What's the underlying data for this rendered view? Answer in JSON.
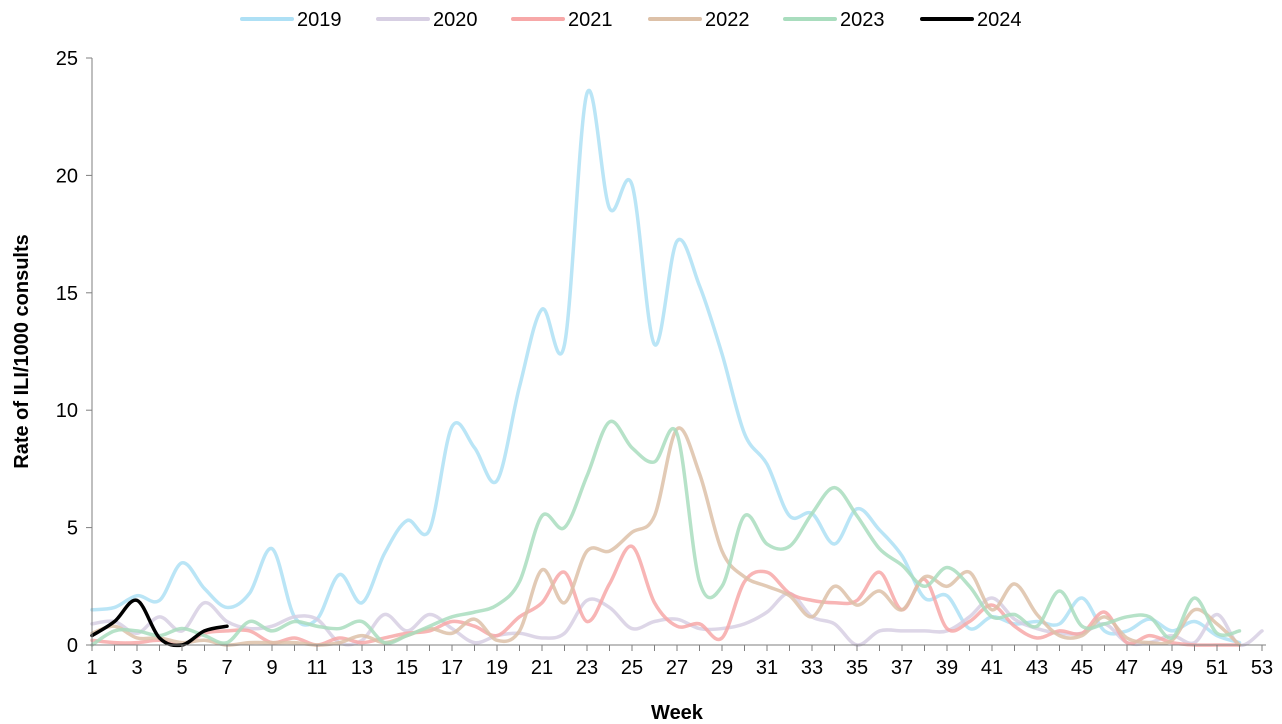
{
  "chart_data": {
    "type": "line",
    "title": "",
    "xlabel": "Week",
    "ylabel": "Rate of ILI/1000 consults",
    "xlim": [
      1,
      53
    ],
    "ylim": [
      0,
      25
    ],
    "x_ticks": [
      1,
      3,
      5,
      7,
      9,
      11,
      13,
      15,
      17,
      19,
      21,
      23,
      25,
      27,
      29,
      31,
      33,
      35,
      37,
      39,
      41,
      43,
      45,
      47,
      49,
      51,
      53
    ],
    "y_ticks": [
      0,
      5,
      10,
      15,
      20,
      25
    ],
    "grid": false,
    "legend_position": "top-center",
    "series": [
      {
        "name": "2019",
        "color": "#AEE0F5",
        "emphasized": false,
        "x": [
          1,
          2,
          3,
          4,
          5,
          6,
          7,
          8,
          9,
          10,
          11,
          12,
          13,
          14,
          15,
          16,
          17,
          18,
          19,
          20,
          21,
          22,
          23,
          24,
          25,
          26,
          27,
          28,
          29,
          30,
          31,
          32,
          33,
          34,
          35,
          36,
          37,
          38,
          39,
          40,
          41,
          42,
          43,
          44,
          45,
          46,
          47,
          48,
          49,
          50,
          51,
          52
        ],
        "y": [
          1.5,
          1.6,
          2.1,
          1.9,
          3.5,
          2.4,
          1.6,
          2.2,
          4.1,
          1.2,
          1.1,
          3.0,
          1.8,
          3.9,
          5.3,
          4.9,
          9.3,
          8.4,
          7.0,
          11.0,
          14.3,
          12.8,
          23.5,
          18.6,
          19.6,
          12.8,
          17.2,
          15.3,
          12.4,
          9.0,
          7.7,
          5.5,
          5.6,
          4.3,
          5.8,
          4.9,
          3.8,
          2.0,
          2.1,
          0.7,
          1.2,
          0.9,
          1.0,
          0.9,
          2.0,
          0.6,
          0.6,
          1.1,
          0.6,
          1.0,
          0.4,
          0.1
        ]
      },
      {
        "name": "2020",
        "color": "#D7CFE3",
        "emphasized": false,
        "x": [
          1,
          2,
          3,
          4,
          5,
          6,
          7,
          8,
          9,
          10,
          11,
          12,
          13,
          14,
          15,
          16,
          17,
          18,
          19,
          20,
          21,
          22,
          23,
          24,
          25,
          26,
          27,
          28,
          29,
          30,
          31,
          32,
          33,
          34,
          35,
          36,
          37,
          38,
          39,
          40,
          41,
          42,
          43,
          44,
          45,
          46,
          47,
          48,
          49,
          50,
          51,
          52,
          53
        ],
        "y": [
          0.9,
          1.0,
          0.5,
          1.2,
          0.6,
          1.8,
          1.0,
          0.7,
          0.8,
          1.2,
          1.1,
          0.1,
          0.2,
          1.3,
          0.6,
          1.3,
          0.7,
          0.1,
          0.4,
          0.5,
          0.3,
          0.5,
          1.9,
          1.6,
          0.7,
          1.0,
          1.1,
          0.7,
          0.7,
          0.9,
          1.4,
          2.2,
          1.2,
          0.9,
          0.0,
          0.6,
          0.6,
          0.6,
          0.6,
          1.2,
          2.0,
          1.1,
          0.7,
          0.5,
          0.5,
          0.9,
          0.1,
          0.1,
          0.4,
          0.1,
          1.3,
          0.0,
          0.6
        ]
      },
      {
        "name": "2021",
        "color": "#F7A8A8",
        "emphasized": false,
        "x": [
          1,
          2,
          3,
          4,
          5,
          6,
          7,
          8,
          9,
          10,
          11,
          12,
          13,
          14,
          15,
          16,
          17,
          18,
          19,
          20,
          21,
          22,
          23,
          24,
          25,
          26,
          27,
          28,
          29,
          30,
          31,
          32,
          33,
          34,
          35,
          36,
          37,
          38,
          39,
          40,
          41,
          42,
          43,
          44,
          45,
          46,
          47,
          48,
          49,
          50,
          51,
          52
        ],
        "y": [
          0.2,
          0.1,
          0.1,
          0.2,
          0.0,
          0.5,
          0.6,
          0.6,
          0.1,
          0.3,
          0.0,
          0.3,
          0.1,
          0.3,
          0.5,
          0.6,
          1.0,
          0.8,
          0.4,
          1.2,
          1.8,
          3.1,
          1.0,
          2.6,
          4.2,
          1.8,
          0.8,
          0.9,
          0.3,
          2.7,
          3.1,
          2.2,
          1.9,
          1.8,
          1.9,
          3.1,
          1.5,
          2.8,
          0.7,
          1.0,
          1.7,
          0.8,
          0.3,
          0.6,
          0.5,
          1.4,
          0.1,
          0.4,
          0.1,
          0.0,
          0.0,
          0.0
        ]
      },
      {
        "name": "2022",
        "color": "#DDC1A8",
        "emphasized": false,
        "x": [
          1,
          2,
          3,
          4,
          5,
          6,
          7,
          8,
          9,
          10,
          11,
          12,
          13,
          14,
          15,
          16,
          17,
          18,
          19,
          20,
          21,
          22,
          23,
          24,
          25,
          26,
          27,
          28,
          29,
          30,
          31,
          32,
          33,
          34,
          35,
          36,
          37,
          38,
          39,
          40,
          41,
          42,
          43,
          44,
          45,
          46,
          47,
          48,
          49,
          50,
          51,
          52
        ],
        "y": [
          0.5,
          0.8,
          0.3,
          0.3,
          0.1,
          0.2,
          0.0,
          0.1,
          0.1,
          0.1,
          0.0,
          0.1,
          0.4,
          0.1,
          0.4,
          0.7,
          0.5,
          1.1,
          0.2,
          0.6,
          3.2,
          1.8,
          4.0,
          4.0,
          4.8,
          5.5,
          9.2,
          7.3,
          4.0,
          2.9,
          2.5,
          2.1,
          1.2,
          2.5,
          1.7,
          2.3,
          1.5,
          2.9,
          2.5,
          3.1,
          1.5,
          2.6,
          1.3,
          0.4,
          0.4,
          1.2,
          0.3,
          0.1,
          0.2,
          1.5,
          0.9,
          0.0
        ]
      },
      {
        "name": "2023",
        "color": "#A9DDBE",
        "emphasized": false,
        "x": [
          1,
          2,
          3,
          4,
          5,
          6,
          7,
          8,
          9,
          10,
          11,
          12,
          13,
          14,
          15,
          16,
          17,
          18,
          19,
          20,
          21,
          22,
          23,
          24,
          25,
          26,
          27,
          28,
          29,
          30,
          31,
          32,
          33,
          34,
          35,
          36,
          37,
          38,
          39,
          40,
          41,
          42,
          43,
          44,
          45,
          46,
          47,
          48,
          49,
          50,
          51,
          52
        ],
        "y": [
          0.0,
          0.6,
          0.6,
          0.4,
          0.7,
          0.4,
          0.1,
          1.0,
          0.6,
          1.0,
          0.8,
          0.7,
          1.0,
          0.1,
          0.4,
          0.8,
          1.2,
          1.4,
          1.7,
          2.7,
          5.5,
          5.0,
          7.2,
          9.5,
          8.4,
          7.8,
          9.0,
          2.7,
          2.5,
          5.5,
          4.3,
          4.2,
          5.6,
          6.7,
          5.5,
          4.1,
          3.4,
          2.5,
          3.3,
          2.5,
          1.2,
          1.3,
          0.8,
          2.3,
          0.8,
          0.9,
          1.2,
          1.2,
          0.3,
          2.0,
          0.5,
          0.6
        ]
      },
      {
        "name": "2024",
        "color": "#000000",
        "emphasized": true,
        "x": [
          1,
          2,
          3,
          4,
          5,
          6,
          7
        ],
        "y": [
          0.4,
          1.0,
          1.9,
          0.3,
          0.0,
          0.6,
          0.8
        ]
      }
    ]
  }
}
